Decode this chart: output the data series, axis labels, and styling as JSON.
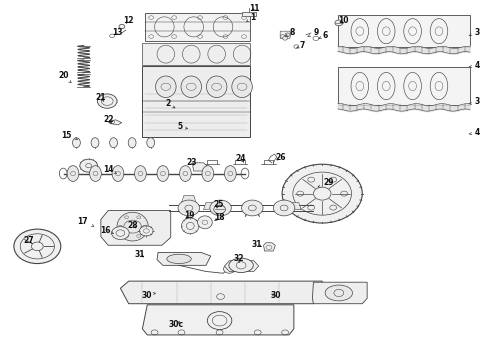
{
  "background_color": "#ffffff",
  "fig_width": 4.9,
  "fig_height": 3.6,
  "dpi": 100,
  "line_color": "#444444",
  "text_color": "#111111",
  "font_size": 5.5,
  "label_positions": {
    "1": [
      0.508,
      0.952,
      0.5,
      0.935
    ],
    "2": [
      0.34,
      0.71,
      0.355,
      0.7
    ],
    "3": [
      0.97,
      0.91,
      0.95,
      0.9
    ],
    "3b": [
      0.97,
      0.72,
      0.95,
      0.715
    ],
    "4": [
      0.97,
      0.82,
      0.95,
      0.815
    ],
    "4b": [
      0.97,
      0.635,
      0.95,
      0.63
    ],
    "5": [
      0.37,
      0.65,
      0.385,
      0.645
    ],
    "6": [
      0.665,
      0.9,
      0.648,
      0.893
    ],
    "7": [
      0.618,
      0.878,
      0.605,
      0.87
    ],
    "8": [
      0.6,
      0.91,
      0.586,
      0.9
    ],
    "9": [
      0.645,
      0.908,
      0.63,
      0.898
    ],
    "10": [
      0.7,
      0.942,
      0.683,
      0.935
    ],
    "11": [
      0.518,
      0.978,
      0.51,
      0.965
    ],
    "12": [
      0.262,
      0.945,
      0.25,
      0.93
    ],
    "13": [
      0.238,
      0.912,
      0.228,
      0.9
    ],
    "14": [
      0.222,
      0.528,
      0.24,
      0.515
    ],
    "15": [
      0.138,
      0.625,
      0.16,
      0.612
    ],
    "16": [
      0.218,
      0.36,
      0.228,
      0.348
    ],
    "17": [
      0.17,
      0.382,
      0.185,
      0.368
    ],
    "18": [
      0.448,
      0.392,
      0.44,
      0.378
    ],
    "19": [
      0.388,
      0.4,
      0.38,
      0.385
    ],
    "20": [
      0.13,
      0.79,
      0.148,
      0.772
    ],
    "21": [
      0.208,
      0.728,
      0.215,
      0.715
    ],
    "22": [
      0.222,
      0.668,
      0.228,
      0.656
    ],
    "23": [
      0.392,
      0.548,
      0.402,
      0.536
    ],
    "24": [
      0.492,
      0.558,
      0.498,
      0.545
    ],
    "25": [
      0.448,
      0.43,
      0.445,
      0.418
    ],
    "26": [
      0.572,
      0.56,
      0.56,
      0.548
    ],
    "27": [
      0.06,
      0.328,
      0.072,
      0.316
    ],
    "28": [
      0.272,
      0.372,
      0.282,
      0.358
    ],
    "29": [
      0.67,
      0.49,
      0.65,
      0.478
    ],
    "30a": [
      0.298,
      0.175,
      0.318,
      0.182
    ],
    "30b": [
      0.56,
      0.175,
      0.545,
      0.182
    ],
    "30c": [
      0.36,
      0.095,
      0.375,
      0.108
    ],
    "31a": [
      0.288,
      0.29,
      0.302,
      0.278
    ],
    "31b": [
      0.558,
      0.318,
      0.545,
      0.308
    ],
    "32": [
      0.49,
      0.278,
      0.49,
      0.265
    ]
  }
}
